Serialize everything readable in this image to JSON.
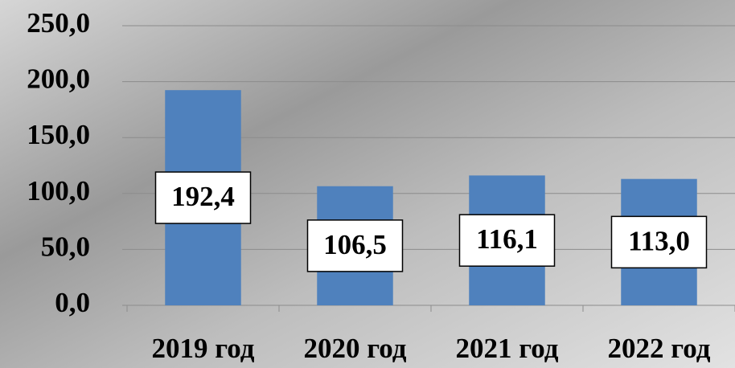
{
  "chart_data": {
    "type": "bar",
    "categories": [
      "2019 год",
      "2020 год",
      "2021 год",
      "2022 год"
    ],
    "values": [
      192.4,
      106.5,
      116.1,
      113.0
    ],
    "value_labels": [
      "192,4",
      "106,5",
      "116,1",
      "113,0"
    ],
    "color": "#4f81bd",
    "ylim": [
      0,
      250
    ],
    "yticks": [
      {
        "value": 0,
        "label": "0,0"
      },
      {
        "value": 50,
        "label": "50,0"
      },
      {
        "value": 100,
        "label": "100,0"
      },
      {
        "value": 150,
        "label": "150,0"
      },
      {
        "value": 200,
        "label": "200,0"
      },
      {
        "value": 250,
        "label": "250,0"
      }
    ],
    "grid": true
  }
}
